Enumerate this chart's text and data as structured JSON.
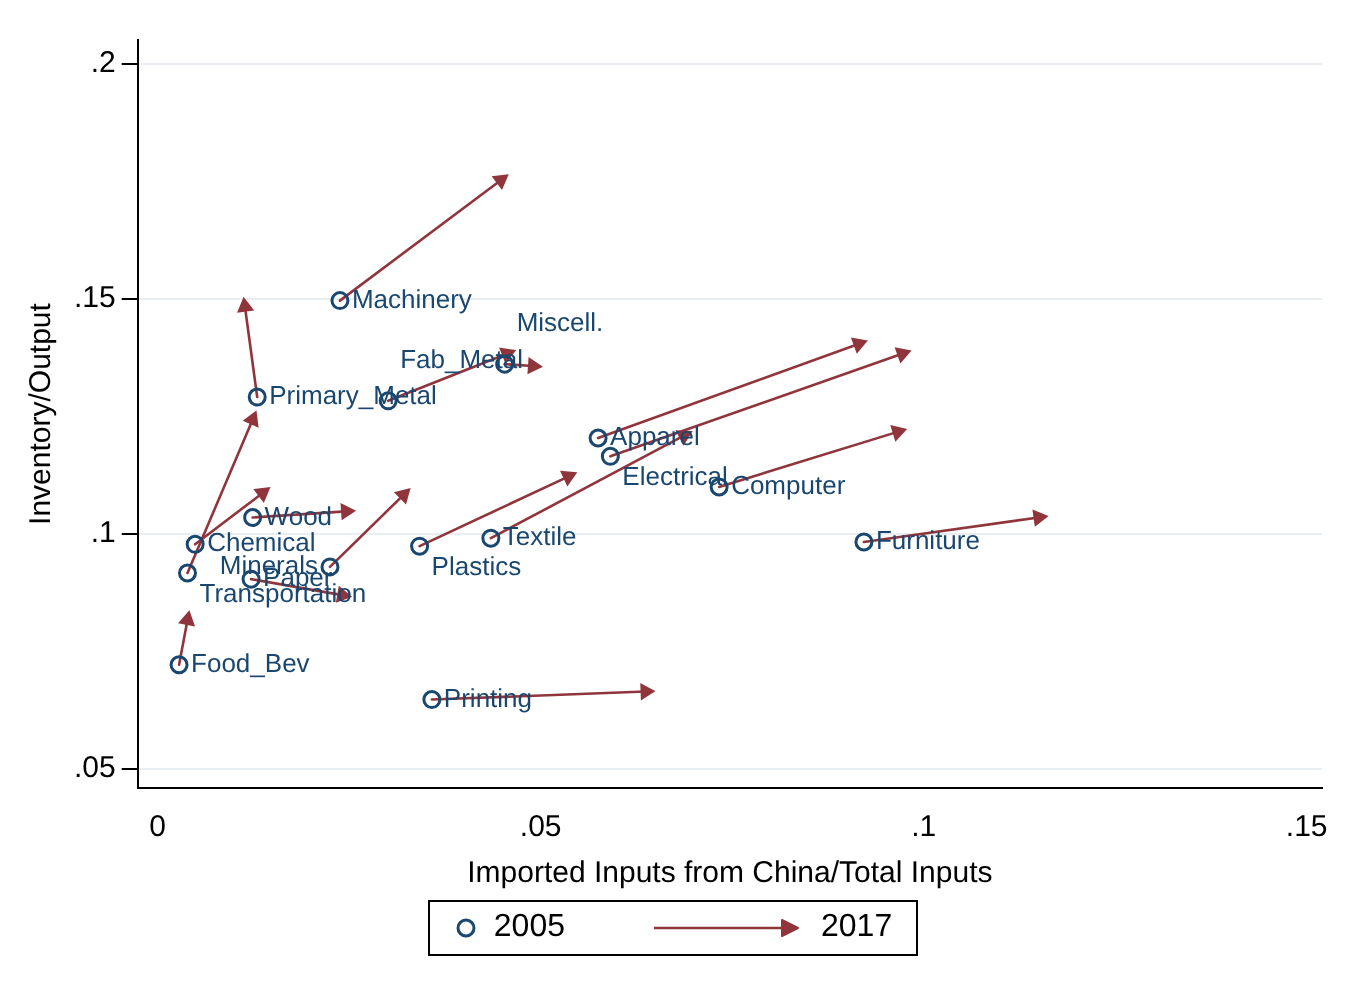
{
  "chart_data": {
    "type": "scatter",
    "xlabel": "Imported Inputs from China/Total Inputs",
    "ylabel": "Inventory/Output",
    "xlim": [
      -0.0026,
      0.152
    ],
    "ylim": [
      0.046,
      0.205
    ],
    "xticks": [
      0,
      {
        "value": 0.05,
        "label": ".05"
      },
      {
        "value": 0.1,
        "label": ".1"
      },
      {
        "value": 0.15,
        "label": ".15"
      }
    ],
    "yticks": [
      {
        "value": 0.05,
        "label": ".05"
      },
      {
        "value": 0.1,
        "label": ".1"
      },
      {
        "value": 0.15,
        "label": ".15"
      },
      {
        "value": 0.2,
        "label": ".2"
      }
    ],
    "grid": "y",
    "legend": "bottom",
    "series": [
      {
        "name": "2005",
        "type": "scatter",
        "marker": "circle",
        "color": "#1a476f",
        "x": [
          0.0238,
          0.013,
          0.0301,
          0.0453,
          0.0575,
          0.0591,
          0.0733,
          0.0922,
          0.0435,
          0.0342,
          0.0225,
          0.0124,
          0.0049,
          0.0039,
          0.0122,
          0.0028,
          0.0358
        ],
        "values": [
          0.1496,
          0.1291,
          0.1283,
          0.1361,
          0.1204,
          0.1165,
          0.11,
          0.0983,
          0.0991,
          0.0974,
          0.093,
          0.1035,
          0.0978,
          0.0917,
          0.0904,
          0.0722,
          0.0648
        ],
        "value_labels": [
          "Machinery",
          "Primary_Metal",
          "Fab_Metal",
          "Miscell.",
          "Apparel",
          "Electrical",
          "Computer",
          "Furniture",
          "Textile",
          "Plastics",
          "Minerals",
          "Wood",
          "Chemical",
          "Transportation",
          "Paper",
          "Food_Bev",
          "Printing"
        ]
      },
      {
        "name": "2017",
        "type": "scatter",
        "marker": "triangle",
        "color": "#90353b",
        "x": [
          0.0448,
          0.0114,
          0.0456,
          0.049,
          0.0915,
          0.0972,
          0.0966,
          0.115,
          0.0687,
          0.0536,
          0.0321,
          0.0246,
          0.0137,
          0.0124,
          0.0241,
          0.0039,
          0.0637
        ],
        "values": [
          0.1752,
          0.1483,
          0.1383,
          0.1357,
          0.1404,
          0.1383,
          0.1217,
          0.1035,
          0.1209,
          0.1122,
          0.1083,
          0.1048,
          0.1087,
          0.1243,
          0.087,
          0.0817,
          0.0665
        ]
      }
    ]
  }
}
